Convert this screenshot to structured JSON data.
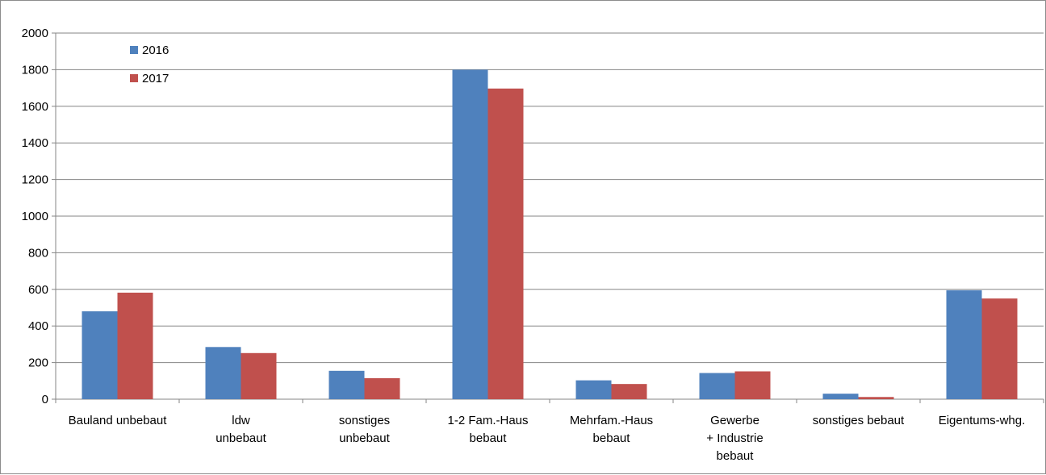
{
  "chart_data": {
    "type": "bar",
    "title": "",
    "xlabel": "",
    "ylabel": "",
    "ylim": [
      0,
      2000
    ],
    "y_ticks": [
      "0",
      "200",
      "400",
      "600",
      "800",
      "1000",
      "1200",
      "1400",
      "1600",
      "1800",
      "2000"
    ],
    "grid": "horizontal",
    "legend_position": "top-left",
    "categories": [
      [
        "Bauland unbebaut"
      ],
      [
        "ldw",
        "unbebaut"
      ],
      [
        "sonstiges",
        "unbebaut"
      ],
      [
        "1-2 Fam.-Haus",
        "bebaut"
      ],
      [
        "Mehrfam.-Haus",
        "bebaut"
      ],
      [
        "Gewerbe",
        "+ Industrie",
        "bebaut"
      ],
      [
        "sonstiges bebaut"
      ],
      [
        "Eigentums-whg."
      ]
    ],
    "series": [
      {
        "name": "2016",
        "color": "#4f81bd",
        "values": [
          480,
          285,
          155,
          1800,
          103,
          143,
          30,
          595
        ]
      },
      {
        "name": "2017",
        "color": "#c0504d",
        "values": [
          582,
          252,
          115,
          1697,
          83,
          152,
          12,
          550
        ]
      }
    ]
  }
}
